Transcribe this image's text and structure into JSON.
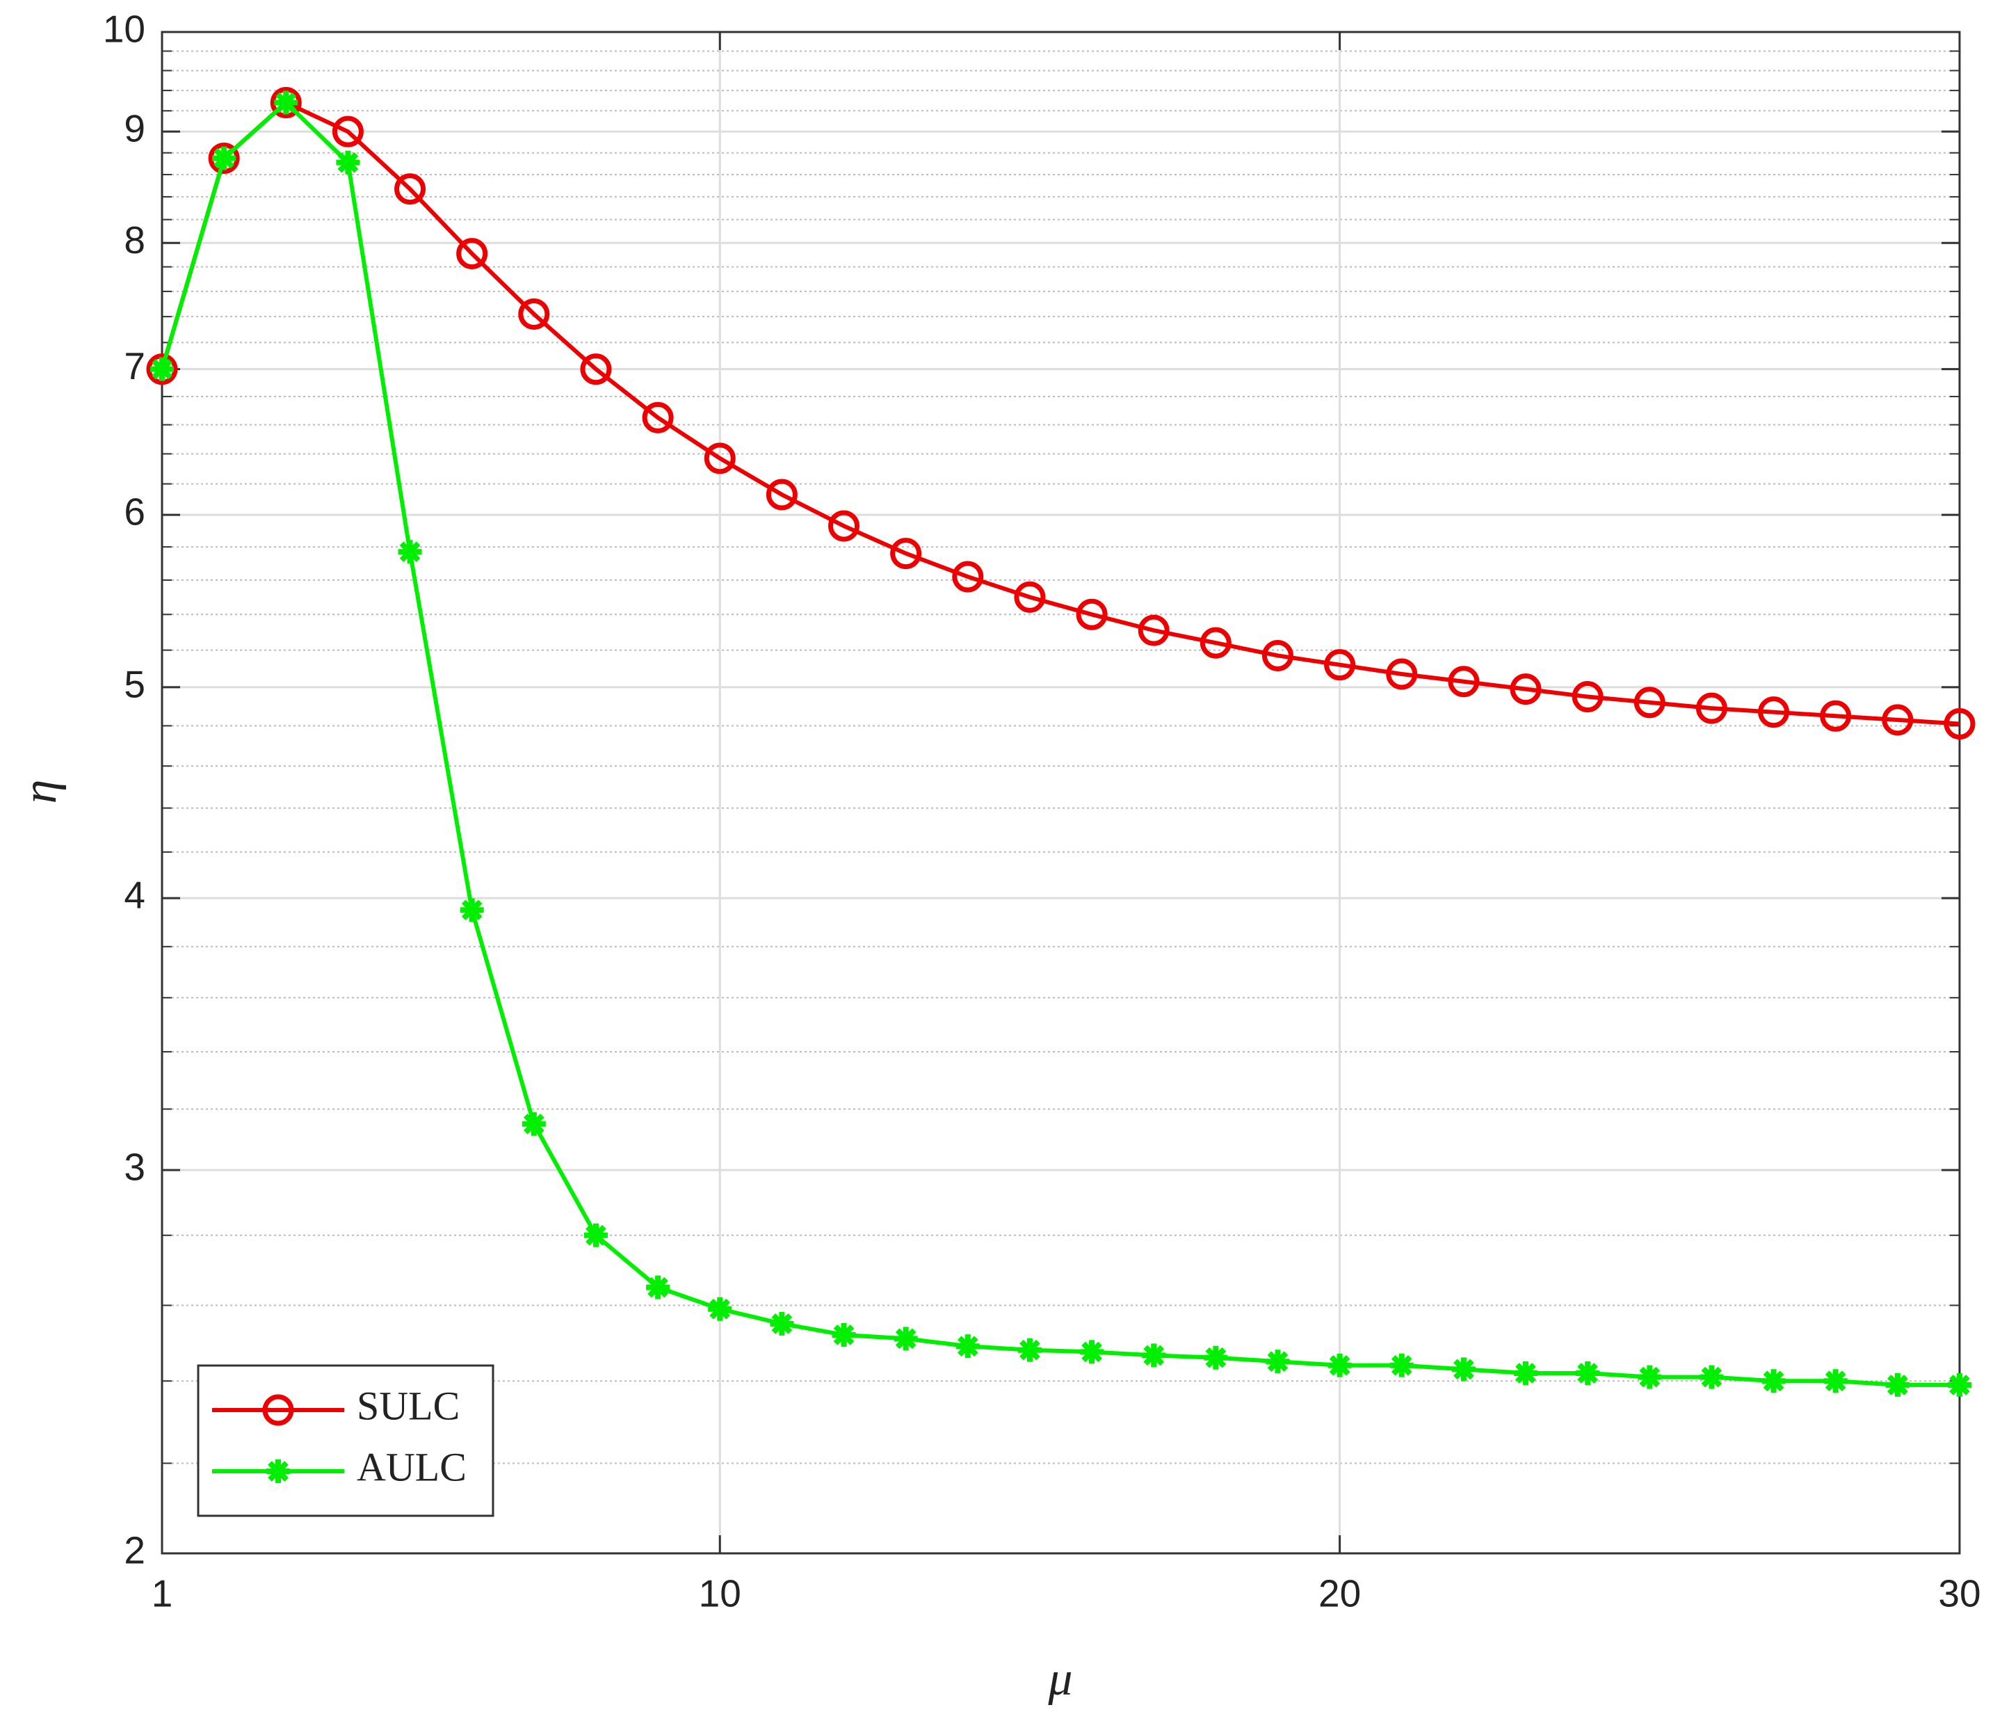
{
  "chart_data": {
    "type": "line",
    "xlabel": "μ",
    "ylabel": "η",
    "x": [
      1,
      2,
      3,
      4,
      5,
      6,
      7,
      8,
      9,
      10,
      11,
      12,
      13,
      14,
      15,
      16,
      17,
      18,
      19,
      20,
      21,
      22,
      23,
      24,
      25,
      26,
      27,
      28,
      29,
      30
    ],
    "series": [
      {
        "name": "SULC",
        "color": "#ee0000",
        "marker": "o",
        "values": [
          7.0,
          8.75,
          9.28,
          9.0,
          8.47,
          7.91,
          7.42,
          7.0,
          6.65,
          6.37,
          6.13,
          5.93,
          5.76,
          5.62,
          5.5,
          5.4,
          5.31,
          5.24,
          5.17,
          5.12,
          5.07,
          5.03,
          4.99,
          4.95,
          4.92,
          4.89,
          4.87,
          4.85,
          4.83,
          4.81
        ]
      },
      {
        "name": "AULC",
        "color": "#00ee00",
        "marker": "*",
        "values": [
          7.0,
          8.75,
          9.28,
          8.71,
          5.77,
          3.95,
          3.15,
          2.8,
          2.65,
          2.59,
          2.55,
          2.52,
          2.51,
          2.49,
          2.48,
          2.475,
          2.466,
          2.46,
          2.45,
          2.44,
          2.44,
          2.43,
          2.42,
          2.42,
          2.41,
          2.41,
          2.4,
          2.4,
          2.39,
          2.39
        ]
      }
    ],
    "xlim": [
      1,
      30
    ],
    "xticks": [
      1,
      10,
      20,
      30
    ],
    "ylim": [
      2,
      10
    ],
    "yticks": [
      2,
      3,
      4,
      5,
      6,
      7,
      8,
      9,
      10
    ],
    "ylog": true,
    "grid": true,
    "legend": "lower left"
  }
}
